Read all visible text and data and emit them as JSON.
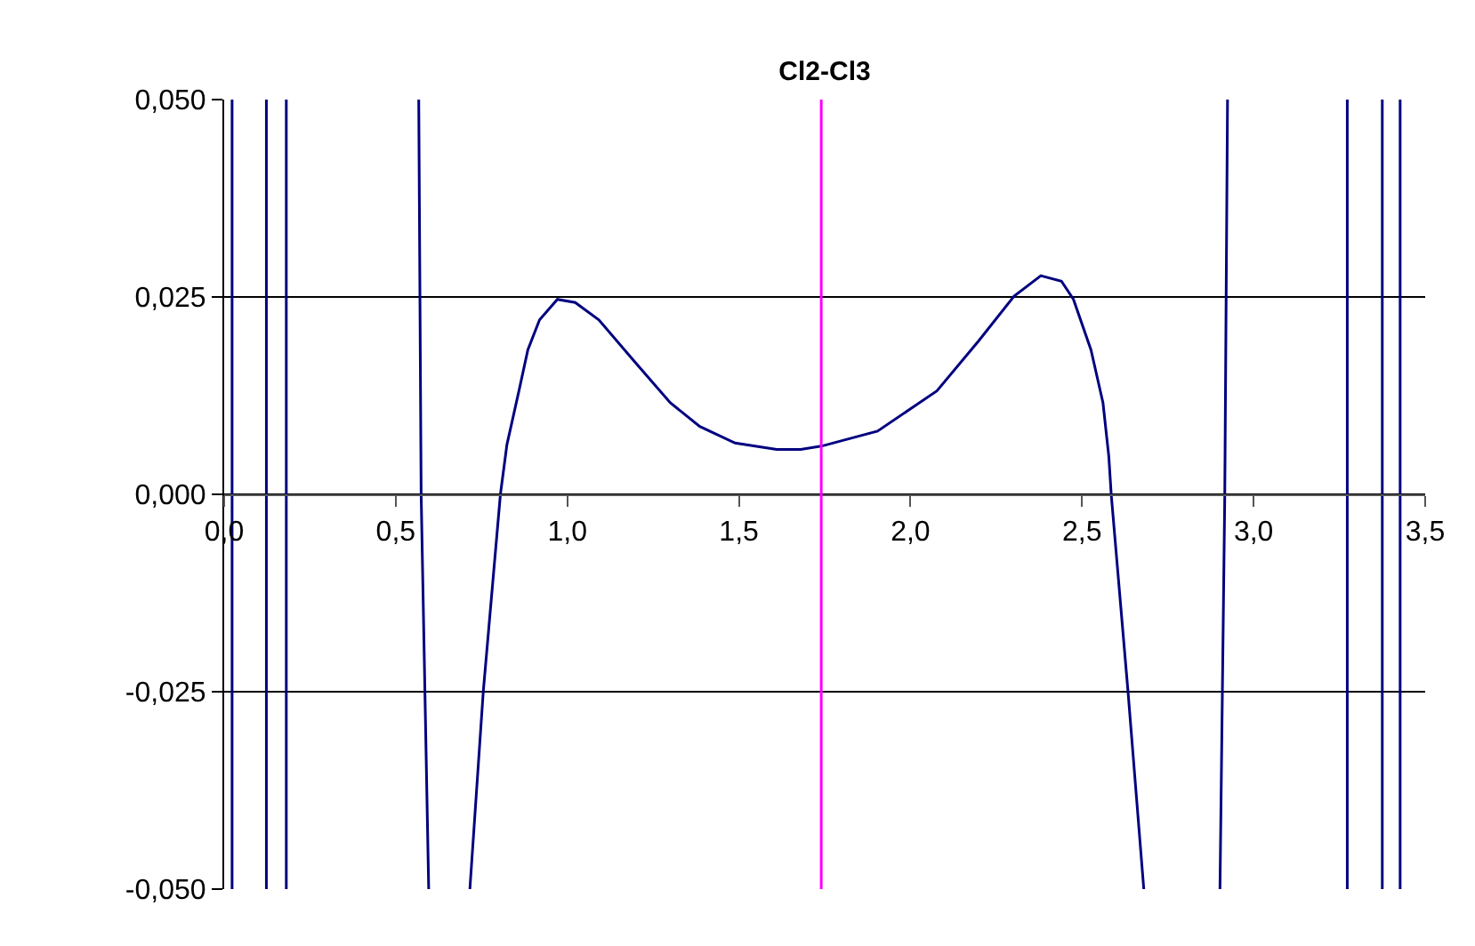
{
  "chart_data": {
    "type": "line",
    "title": "Cl2-Cl3",
    "x": [
      0.023,
      0.023,
      null,
      0.123,
      0.123,
      null,
      0.181,
      0.181,
      null,
      0.567,
      0.574,
      0.596,
      null,
      0.716,
      0.755,
      0.805,
      0.824,
      0.859,
      0.885,
      0.919,
      0.971,
      1.023,
      1.092,
      1.196,
      1.3,
      1.386,
      1.489,
      1.61,
      1.68,
      1.74,
      1.904,
      2.077,
      2.198,
      2.302,
      2.38,
      2.44,
      2.475,
      2.526,
      2.561,
      2.578,
      2.585,
      2.634,
      2.68,
      null,
      2.902,
      2.916,
      2.924,
      null,
      3.273,
      3.273,
      null,
      3.375,
      3.375,
      null,
      3.427,
      3.427
    ],
    "series": [
      {
        "color": "#000080",
        "values": [
          0.05,
          -0.05,
          null,
          0.05,
          -0.05,
          null,
          0.05,
          -0.05,
          null,
          0.05,
          0.0,
          -0.05,
          null,
          -0.05,
          -0.025,
          0.0,
          0.0063,
          0.0131,
          0.0183,
          0.0221,
          0.0247,
          0.0243,
          0.0221,
          0.0168,
          0.0116,
          0.0086,
          0.0065,
          0.0057,
          0.0057,
          0.0061,
          0.008,
          0.0131,
          0.0194,
          0.0251,
          0.0277,
          0.027,
          0.0247,
          0.0183,
          0.0116,
          0.0048,
          0.0,
          -0.025,
          -0.05,
          null,
          -0.05,
          0.0,
          0.05,
          null,
          0.05,
          -0.05,
          null,
          0.05,
          -0.05,
          null,
          0.05,
          -0.05
        ]
      }
    ],
    "xlim": [
      0,
      3.5
    ],
    "xticks": [
      {
        "value": 0,
        "label": "0,0"
      },
      {
        "value": 0.5,
        "label": "0,5"
      },
      {
        "value": 1.0,
        "label": "1,0"
      },
      {
        "value": 1.5,
        "label": "1,5"
      },
      {
        "value": 2.0,
        "label": "2,0"
      },
      {
        "value": 2.5,
        "label": "2,5"
      },
      {
        "value": 3.0,
        "label": "3,0"
      },
      {
        "value": 3.5,
        "label": "3,5"
      }
    ],
    "ylim": [
      -0.05,
      0.05
    ],
    "yticks": [
      {
        "value": -0.05,
        "label": "-0,050"
      },
      {
        "value": -0.025,
        "label": "-0,025"
      },
      {
        "value": 0,
        "label": "0,000"
      },
      {
        "value": 0.025,
        "label": "0,025"
      },
      {
        "value": 0.05,
        "label": "0,050"
      }
    ],
    "ref_lines": [
      {
        "axis": "x",
        "value": 1.74,
        "color": "#ff00ff"
      }
    ],
    "grid": "y",
    "legend": false,
    "marker": "none",
    "line_style": "solid"
  }
}
